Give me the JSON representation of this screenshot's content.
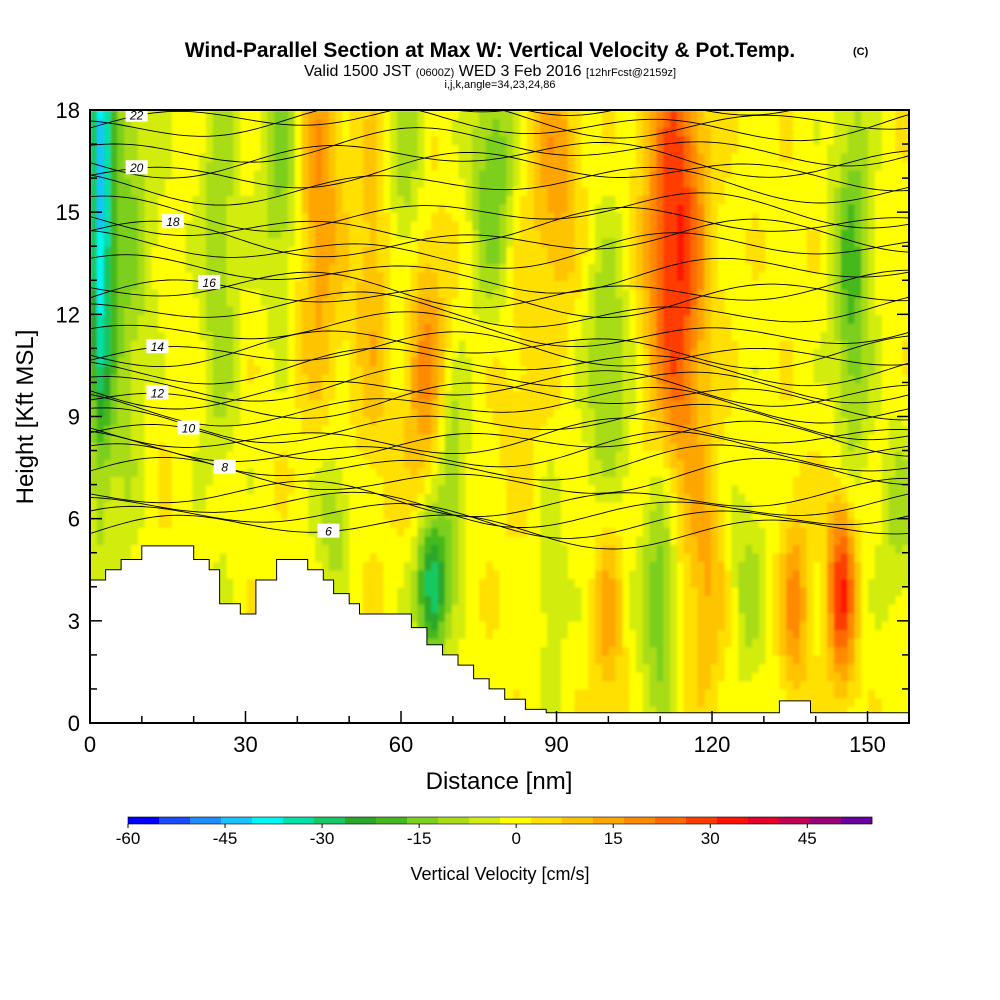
{
  "title": {
    "main": "Wind-Parallel Section at Max W: Vertical Velocity & Pot.Temp.",
    "main_suffix": "(C)",
    "line2_a": "Valid 1500 JST",
    "line2_b": "(0600Z)",
    "line2_c": "WED 3 Feb 2016",
    "line2_d": "[12hrFcst@2159z]",
    "line3": "i,j,k,angle=34,23,24,86"
  },
  "chart_data": {
    "type": "heatmap",
    "xlabel": "Distance [nm]",
    "ylabel": "Height [Kft MSL]",
    "xlim": [
      0,
      158
    ],
    "ylim": [
      0,
      18
    ],
    "x_ticks": [
      "0",
      "30",
      "60",
      "90",
      "120",
      "150"
    ],
    "x_tick_values": [
      0,
      30,
      60,
      90,
      120,
      150
    ],
    "y_ticks": [
      "0",
      "3",
      "6",
      "9",
      "12",
      "15",
      "18"
    ],
    "y_tick_values": [
      0,
      3,
      6,
      9,
      12,
      15,
      18
    ],
    "terrain": [
      {
        "x": 0,
        "y": 4.2
      },
      {
        "x": 3,
        "y": 4.2
      },
      {
        "x": 3,
        "y": 4.5
      },
      {
        "x": 6,
        "y": 4.5
      },
      {
        "x": 6,
        "y": 4.8
      },
      {
        "x": 10,
        "y": 4.8
      },
      {
        "x": 10,
        "y": 5.2
      },
      {
        "x": 20,
        "y": 5.2
      },
      {
        "x": 20,
        "y": 4.8
      },
      {
        "x": 23,
        "y": 4.8
      },
      {
        "x": 23,
        "y": 4.5
      },
      {
        "x": 25,
        "y": 4.5
      },
      {
        "x": 25,
        "y": 3.5
      },
      {
        "x": 29,
        "y": 3.5
      },
      {
        "x": 29,
        "y": 3.2
      },
      {
        "x": 32,
        "y": 3.2
      },
      {
        "x": 32,
        "y": 4.2
      },
      {
        "x": 36,
        "y": 4.2
      },
      {
        "x": 36,
        "y": 4.8
      },
      {
        "x": 42,
        "y": 4.8
      },
      {
        "x": 42,
        "y": 4.5
      },
      {
        "x": 45,
        "y": 4.5
      },
      {
        "x": 45,
        "y": 4.2
      },
      {
        "x": 47,
        "y": 4.2
      },
      {
        "x": 47,
        "y": 3.8
      },
      {
        "x": 50,
        "y": 3.8
      },
      {
        "x": 50,
        "y": 3.5
      },
      {
        "x": 52,
        "y": 3.5
      },
      {
        "x": 52,
        "y": 3.2
      },
      {
        "x": 56,
        "y": 3.2
      },
      {
        "x": 62,
        "y": 3.2
      },
      {
        "x": 62,
        "y": 2.8
      },
      {
        "x": 65,
        "y": 2.8
      },
      {
        "x": 65,
        "y": 2.3
      },
      {
        "x": 68,
        "y": 2.3
      },
      {
        "x": 68,
        "y": 2.0
      },
      {
        "x": 71,
        "y": 2.0
      },
      {
        "x": 71,
        "y": 1.7
      },
      {
        "x": 74,
        "y": 1.7
      },
      {
        "x": 74,
        "y": 1.3
      },
      {
        "x": 77,
        "y": 1.3
      },
      {
        "x": 77,
        "y": 1.0
      },
      {
        "x": 80,
        "y": 1.0
      },
      {
        "x": 80,
        "y": 0.7
      },
      {
        "x": 84,
        "y": 0.7
      },
      {
        "x": 84,
        "y": 0.4
      },
      {
        "x": 88,
        "y": 0.4
      },
      {
        "x": 88,
        "y": 0.3
      },
      {
        "x": 133,
        "y": 0.3
      },
      {
        "x": 133,
        "y": 0.65
      },
      {
        "x": 139,
        "y": 0.65
      },
      {
        "x": 139,
        "y": 0.3
      },
      {
        "x": 158,
        "y": 0.3
      }
    ],
    "w_anomalies": [
      {
        "x": 2,
        "y": 15.5,
        "sx": 1.5,
        "sy": 5,
        "w": -35
      },
      {
        "x": 6,
        "y": 14,
        "sx": 5,
        "sy": 6,
        "w": -15
      },
      {
        "x": 12,
        "y": 9,
        "sx": 3,
        "sy": 4,
        "w": 4
      },
      {
        "x": 25,
        "y": 14,
        "sx": 2.5,
        "sy": 5,
        "w": -12
      },
      {
        "x": 37,
        "y": 16.5,
        "sx": 3,
        "sy": 3,
        "w": -15
      },
      {
        "x": 44,
        "y": 15.5,
        "sx": 3,
        "sy": 4,
        "w": 18
      },
      {
        "x": 47,
        "y": 6,
        "sx": 2.5,
        "sy": 1.5,
        "w": -12
      },
      {
        "x": 55,
        "y": 13,
        "sx": 3,
        "sy": 4,
        "w": 12
      },
      {
        "x": 61,
        "y": 15,
        "sx": 3,
        "sy": 4,
        "w": -15
      },
      {
        "x": 64,
        "y": 11,
        "sx": 3,
        "sy": 3,
        "w": 22
      },
      {
        "x": 66,
        "y": 4.0,
        "sx": 2.2,
        "sy": 1.5,
        "w": -35
      },
      {
        "x": 70,
        "y": 7.5,
        "sx": 2,
        "sy": 1.8,
        "w": -15
      },
      {
        "x": 78,
        "y": 16,
        "sx": 3,
        "sy": 3,
        "w": -20
      },
      {
        "x": 82,
        "y": 12,
        "sx": 4,
        "sy": 4,
        "w": 6
      },
      {
        "x": 90,
        "y": 16.5,
        "sx": 3,
        "sy": 3,
        "w": 15
      },
      {
        "x": 89,
        "y": 4,
        "sx": 2,
        "sy": 2,
        "w": -8
      },
      {
        "x": 100,
        "y": 10,
        "sx": 3,
        "sy": 3,
        "w": -15
      },
      {
        "x": 100,
        "y": 3.5,
        "sx": 2,
        "sy": 2.5,
        "w": 14
      },
      {
        "x": 110,
        "y": 4,
        "sx": 2.5,
        "sy": 3,
        "w": -20
      },
      {
        "x": 113,
        "y": 14,
        "sx": 4,
        "sy": 5,
        "w": 34
      },
      {
        "x": 119,
        "y": 4,
        "sx": 2.5,
        "sy": 2.5,
        "w": 12
      },
      {
        "x": 127,
        "y": 4,
        "sx": 2.5,
        "sy": 2,
        "w": -10
      },
      {
        "x": 136,
        "y": 3.5,
        "sx": 2,
        "sy": 2,
        "w": 18
      },
      {
        "x": 145,
        "y": 4,
        "sx": 2,
        "sy": 2,
        "w": 33
      },
      {
        "x": 147,
        "y": 13,
        "sx": 2.5,
        "sy": 4,
        "w": -20
      },
      {
        "x": 156,
        "y": 6,
        "sx": 2.5,
        "sy": 2,
        "w": -10
      }
    ],
    "theta_contours": [
      {
        "label": "22",
        "label_x": 9,
        "base": 17.7,
        "step": 0.7
      },
      {
        "label": "20",
        "label_x": 9,
        "base": 16.2,
        "step": 0.7
      },
      {
        "label": "18",
        "label_x": 16,
        "base": 14.2,
        "step": 0.8
      },
      {
        "label": "16",
        "label_x": 23,
        "base": 12.5,
        "step": 0.7
      },
      {
        "label": "14",
        "label_x": 13,
        "base": 10.9,
        "step": 0.6
      },
      {
        "label": "12",
        "label_x": 13,
        "base": 9.5,
        "step": 0.5
      },
      {
        "label": "10",
        "label_x": 19,
        "base": 8.3,
        "step": 0.5
      },
      {
        "label": "8",
        "label_x": 26,
        "base": 7.2,
        "step": 0.4
      },
      {
        "label": "6",
        "label_x": 46,
        "base": 5.7,
        "step": 0.3
      }
    ],
    "colorbar": {
      "title": "Vertical Velocity [cm/s]",
      "tick_labels": [
        "-60",
        "-45",
        "-30",
        "-15",
        "0",
        "15",
        "30",
        "45"
      ],
      "tick_values": [
        -60,
        -45,
        -30,
        -15,
        0,
        15,
        30,
        45
      ],
      "min": -60,
      "max": 55,
      "bin_width": 5,
      "colors": [
        "#0000ff",
        "#1a4cff",
        "#1f8cff",
        "#19c3ff",
        "#00f5f5",
        "#00e0a8",
        "#18c860",
        "#2aa82a",
        "#45b81e",
        "#7ccf1e",
        "#a8dc14",
        "#d2ec10",
        "#ffff00",
        "#ffe000",
        "#ffc400",
        "#ffa500",
        "#ff8a00",
        "#ff6a00",
        "#ff3c00",
        "#ff1200",
        "#e6002a",
        "#bf0055",
        "#990078",
        "#6a00a0"
      ]
    }
  }
}
